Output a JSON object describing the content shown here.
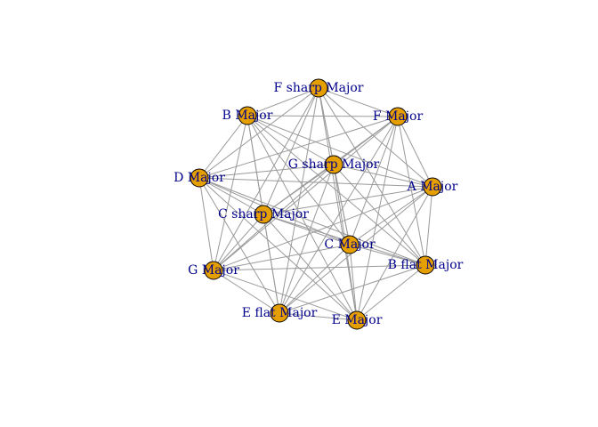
{
  "graph": {
    "node_color": "#e69f00",
    "label_color": "#00008b",
    "edge_color": "#9a9a9a",
    "nodes": [
      {
        "id": "fsharp",
        "label": "F sharp Major"
      },
      {
        "id": "b",
        "label": "B Major"
      },
      {
        "id": "f",
        "label": "F Major"
      },
      {
        "id": "gsharp",
        "label": "G sharp Major"
      },
      {
        "id": "d",
        "label": "D Major"
      },
      {
        "id": "a",
        "label": "A Major"
      },
      {
        "id": "csharp",
        "label": "C sharp Major"
      },
      {
        "id": "c",
        "label": "C Major"
      },
      {
        "id": "bflat",
        "label": "B flat Major"
      },
      {
        "id": "g",
        "label": "G Major"
      },
      {
        "id": "eflat",
        "label": "E flat Major"
      },
      {
        "id": "e",
        "label": "E Major"
      }
    ],
    "edges": [
      [
        "fsharp",
        "b"
      ],
      [
        "fsharp",
        "f"
      ],
      [
        "fsharp",
        "gsharp"
      ],
      [
        "fsharp",
        "d"
      ],
      [
        "fsharp",
        "a"
      ],
      [
        "fsharp",
        "csharp"
      ],
      [
        "fsharp",
        "c"
      ],
      [
        "fsharp",
        "bflat"
      ],
      [
        "fsharp",
        "g"
      ],
      [
        "fsharp",
        "eflat"
      ],
      [
        "fsharp",
        "e"
      ],
      [
        "b",
        "f"
      ],
      [
        "b",
        "gsharp"
      ],
      [
        "b",
        "d"
      ],
      [
        "b",
        "a"
      ],
      [
        "b",
        "csharp"
      ],
      [
        "b",
        "c"
      ],
      [
        "b",
        "bflat"
      ],
      [
        "b",
        "g"
      ],
      [
        "b",
        "eflat"
      ],
      [
        "b",
        "e"
      ],
      [
        "f",
        "gsharp"
      ],
      [
        "f",
        "d"
      ],
      [
        "f",
        "a"
      ],
      [
        "f",
        "csharp"
      ],
      [
        "f",
        "c"
      ],
      [
        "f",
        "bflat"
      ],
      [
        "f",
        "g"
      ],
      [
        "f",
        "eflat"
      ],
      [
        "f",
        "e"
      ],
      [
        "gsharp",
        "d"
      ],
      [
        "gsharp",
        "a"
      ],
      [
        "gsharp",
        "csharp"
      ],
      [
        "gsharp",
        "c"
      ],
      [
        "gsharp",
        "bflat"
      ],
      [
        "gsharp",
        "g"
      ],
      [
        "gsharp",
        "eflat"
      ],
      [
        "gsharp",
        "e"
      ],
      [
        "d",
        "a"
      ],
      [
        "d",
        "csharp"
      ],
      [
        "d",
        "c"
      ],
      [
        "d",
        "bflat"
      ],
      [
        "d",
        "g"
      ],
      [
        "d",
        "eflat"
      ],
      [
        "d",
        "e"
      ],
      [
        "a",
        "csharp"
      ],
      [
        "a",
        "c"
      ],
      [
        "a",
        "bflat"
      ],
      [
        "a",
        "g"
      ],
      [
        "a",
        "eflat"
      ],
      [
        "a",
        "e"
      ],
      [
        "csharp",
        "c"
      ],
      [
        "csharp",
        "bflat"
      ],
      [
        "csharp",
        "g"
      ],
      [
        "csharp",
        "eflat"
      ],
      [
        "csharp",
        "e"
      ],
      [
        "c",
        "bflat"
      ],
      [
        "c",
        "g"
      ],
      [
        "c",
        "eflat"
      ],
      [
        "c",
        "e"
      ],
      [
        "bflat",
        "g"
      ],
      [
        "bflat",
        "eflat"
      ],
      [
        "bflat",
        "e"
      ],
      [
        "g",
        "eflat"
      ],
      [
        "g",
        "e"
      ],
      [
        "eflat",
        "e"
      ]
    ]
  }
}
